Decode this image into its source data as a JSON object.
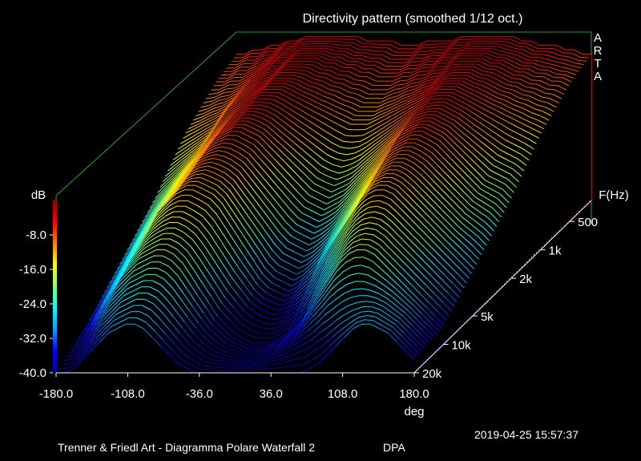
{
  "chart_data": {
    "type": "waterfall-3d",
    "title": "Directivity pattern (smoothed 1/12 oct.)",
    "brand": [
      "A",
      "R",
      "T",
      "A"
    ],
    "x_axis": {
      "label": "deg",
      "range": [
        -180,
        180
      ],
      "ticks": [
        {
          "value": -180,
          "label": "-180.0"
        },
        {
          "value": -108,
          "label": "-108.0"
        },
        {
          "value": -36,
          "label": "-36.0"
        },
        {
          "value": 36,
          "label": "36.0"
        },
        {
          "value": 108,
          "label": "108.0"
        },
        {
          "value": 180,
          "label": "180.0"
        }
      ]
    },
    "z_axis": {
      "label": "dB",
      "range": [
        -40,
        0
      ],
      "ticks": [
        {
          "value": -8,
          "label": "-8.0"
        },
        {
          "value": -16,
          "label": "-16.0"
        },
        {
          "value": -24,
          "label": "-24.0"
        },
        {
          "value": -32,
          "label": "-32.0"
        },
        {
          "value": -40,
          "label": "-40.0"
        }
      ]
    },
    "y_axis": {
      "label": "F(Hz)",
      "range": [
        20000,
        300
      ],
      "ticks": [
        {
          "value": 500,
          "label": "500"
        },
        {
          "value": 1000,
          "label": "1k"
        },
        {
          "value": 2000,
          "label": "2k"
        },
        {
          "value": 5000,
          "label": "5k"
        },
        {
          "value": 10000,
          "label": "10k"
        },
        {
          "value": 20000,
          "label": "20k"
        }
      ]
    },
    "colormap": [
      "#0000a0",
      "#0000ff",
      "#00a0ff",
      "#00ffff",
      "#80ff80",
      "#ffff00",
      "#ff8000",
      "#ff0000",
      "#900000"
    ],
    "series": [
      {
        "freq": 20000,
        "values": [
          -40,
          -40,
          -39,
          -37,
          -35,
          -33,
          -31,
          -30,
          -29,
          -29,
          -30,
          -32,
          -34,
          -36,
          -38,
          -39,
          -40,
          -40,
          -40,
          -40,
          -40,
          -40,
          -40,
          -40,
          -40,
          -40,
          -40,
          -40,
          -40,
          -39,
          -38,
          -36,
          -34,
          -32,
          -30,
          -29,
          -29,
          -30,
          -31,
          -33,
          -35,
          -37
        ]
      },
      {
        "freq": 10000,
        "values": [
          -36,
          -34,
          -31,
          -28,
          -25,
          -23,
          -21,
          -20,
          -19,
          -19,
          -20,
          -22,
          -25,
          -28,
          -31,
          -34,
          -36,
          -38,
          -39,
          -40,
          -40,
          -40,
          -39,
          -38,
          -36,
          -34,
          -31,
          -28,
          -25,
          -22,
          -20,
          -19,
          -19,
          -20,
          -22,
          -24,
          -26,
          -28,
          -30,
          -32,
          -34,
          -36
        ]
      },
      {
        "freq": 5000,
        "values": [
          -30,
          -28,
          -25,
          -22,
          -19,
          -16,
          -14,
          -12,
          -11,
          -11,
          -12,
          -13,
          -15,
          -18,
          -21,
          -24,
          -27,
          -30,
          -32,
          -33,
          -34,
          -33,
          -31,
          -29,
          -26,
          -23,
          -20,
          -17,
          -14,
          -12,
          -11,
          -11,
          -12,
          -14,
          -16,
          -18,
          -20,
          -22,
          -24,
          -26,
          -28,
          -30
        ]
      },
      {
        "freq": 2000,
        "values": [
          -22,
          -20,
          -18,
          -16,
          -14,
          -12,
          -10,
          -8,
          -7,
          -6,
          -6,
          -7,
          -8,
          -10,
          -12,
          -14,
          -16,
          -18,
          -20,
          -21,
          -22,
          -21,
          -20,
          -18,
          -16,
          -14,
          -12,
          -10,
          -8,
          -7,
          -6,
          -6,
          -7,
          -8,
          -10,
          -12,
          -14,
          -16,
          -18,
          -19,
          -20,
          -22
        ]
      },
      {
        "freq": 1000,
        "values": [
          -14,
          -13,
          -12,
          -11,
          -10,
          -8,
          -7,
          -6,
          -5,
          -4,
          -4,
          -4,
          -5,
          -6,
          -7,
          -8,
          -9,
          -10,
          -11,
          -12,
          -12,
          -12,
          -11,
          -10,
          -9,
          -8,
          -7,
          -6,
          -5,
          -4,
          -4,
          -4,
          -5,
          -6,
          -7,
          -8,
          -9,
          -10,
          -11,
          -12,
          -13,
          -14
        ]
      },
      {
        "freq": 500,
        "values": [
          -9,
          -9,
          -8,
          -8,
          -7,
          -6,
          -5,
          -4,
          -4,
          -3,
          -3,
          -3,
          -3,
          -4,
          -4,
          -5,
          -5,
          -6,
          -6,
          -7,
          -7,
          -7,
          -6,
          -6,
          -5,
          -5,
          -4,
          -4,
          -3,
          -3,
          -3,
          -3,
          -4,
          -4,
          -5,
          -6,
          -6,
          -7,
          -7,
          -8,
          -8,
          -9
        ]
      },
      {
        "freq": 300,
        "values": [
          -7,
          -7,
          -6,
          -6,
          -5,
          -5,
          -4,
          -4,
          -3,
          -3,
          -3,
          -3,
          -3,
          -3,
          -3,
          -4,
          -4,
          -4,
          -4,
          -5,
          -5,
          -5,
          -4,
          -4,
          -4,
          -4,
          -3,
          -3,
          -3,
          -3,
          -3,
          -3,
          -3,
          -4,
          -4,
          -5,
          -5,
          -5,
          -6,
          -6,
          -7,
          -7
        ]
      }
    ]
  },
  "footer": {
    "left": "Trenner & Friedl Art - Diagramma Polare Waterfall 2",
    "tag": "DPA",
    "datetime": "2019-04-25  15:57:37"
  }
}
